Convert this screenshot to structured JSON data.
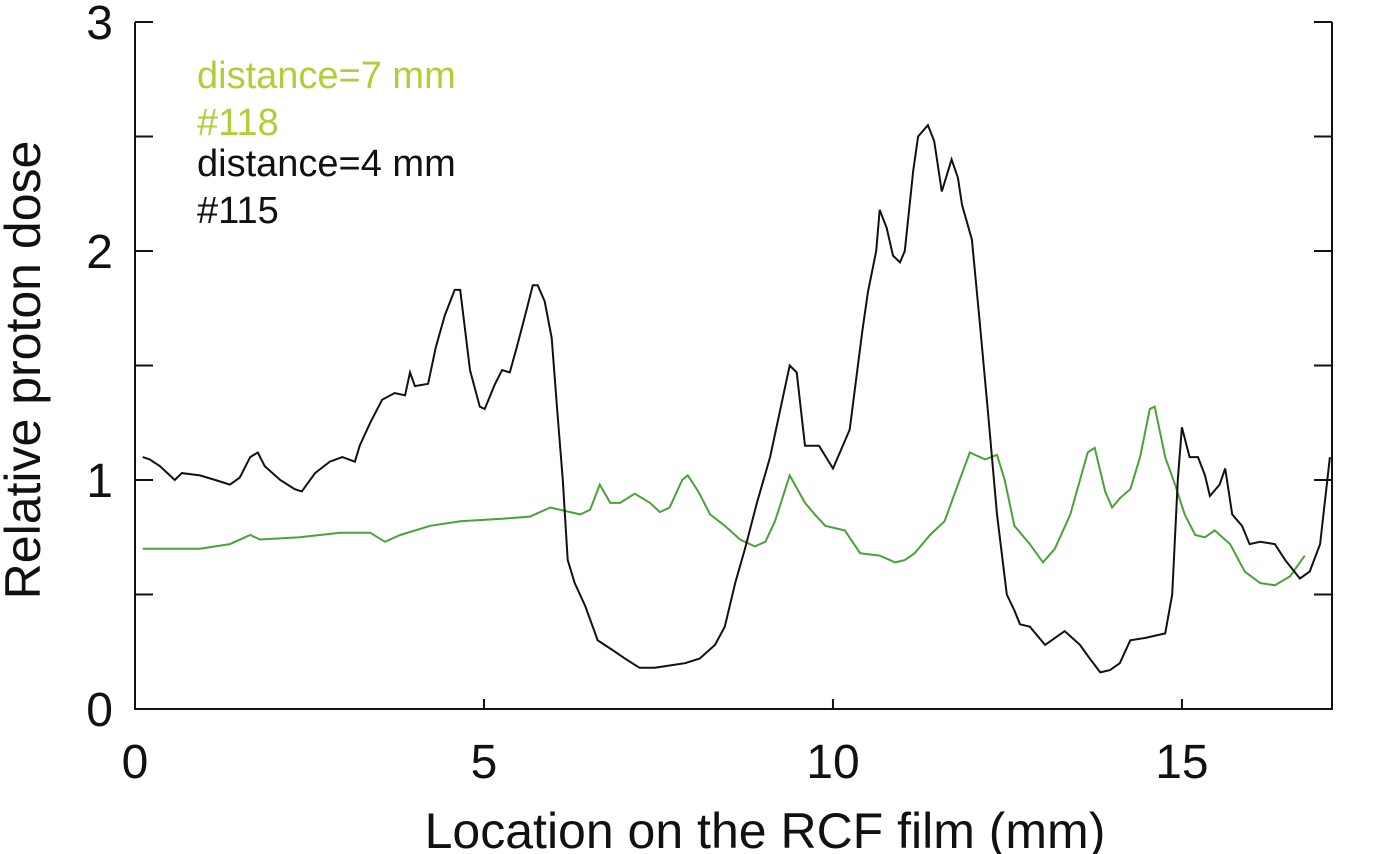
{
  "chart_data": {
    "type": "line",
    "xlabel": "Location on the RCF film (mm)",
    "ylabel": "Relative proton dose",
    "xlim": [
      0,
      17.15
    ],
    "xticks": [
      0,
      5,
      10,
      15
    ],
    "ylim": [
      0,
      3
    ],
    "yticks": [
      0,
      1,
      2,
      3
    ],
    "yminor_ticks": [
      0.5,
      1.5,
      2.5
    ],
    "grid": false,
    "series": [
      {
        "name": "distance=7 mm",
        "sample": "#118",
        "color": "#4ea03a",
        "legend_color": "#b5cc3a",
        "x": [
          0.11,
          0.36,
          0.93,
          1.36,
          1.65,
          1.79,
          2.36,
          2.94,
          3.37,
          3.58,
          3.8,
          4.23,
          4.66,
          5.23,
          5.66,
          5.95,
          6.38,
          6.52,
          6.66,
          6.81,
          6.95,
          7.16,
          7.38,
          7.52,
          7.66,
          7.84,
          7.92,
          8.07,
          8.24,
          8.45,
          8.67,
          8.88,
          9.03,
          9.17,
          9.38,
          9.6,
          9.74,
          9.89,
          10.17,
          10.39,
          10.67,
          10.89,
          11.03,
          11.17,
          11.39,
          11.6,
          11.79,
          11.96,
          12.18,
          12.35,
          12.46,
          12.6,
          12.82,
          13.01,
          13.18,
          13.4,
          13.54,
          13.65,
          13.75,
          13.9,
          14.0,
          14.11,
          14.26,
          14.4,
          14.54,
          14.61,
          14.76,
          14.9,
          15.04,
          15.19,
          15.33,
          15.47,
          15.69,
          15.9,
          16.12,
          16.33,
          16.55,
          16.76
        ],
        "values": [
          0.7,
          0.7,
          0.7,
          0.72,
          0.76,
          0.74,
          0.75,
          0.77,
          0.77,
          0.73,
          0.76,
          0.8,
          0.82,
          0.83,
          0.84,
          0.88,
          0.85,
          0.87,
          0.98,
          0.9,
          0.9,
          0.94,
          0.9,
          0.86,
          0.88,
          1.0,
          1.02,
          0.95,
          0.85,
          0.8,
          0.74,
          0.71,
          0.73,
          0.82,
          1.02,
          0.9,
          0.85,
          0.8,
          0.78,
          0.68,
          0.67,
          0.64,
          0.65,
          0.68,
          0.76,
          0.82,
          0.98,
          1.12,
          1.09,
          1.11,
          1.0,
          0.8,
          0.72,
          0.64,
          0.7,
          0.85,
          1.0,
          1.12,
          1.14,
          0.95,
          0.88,
          0.92,
          0.96,
          1.1,
          1.31,
          1.32,
          1.1,
          0.98,
          0.85,
          0.76,
          0.75,
          0.78,
          0.72,
          0.6,
          0.55,
          0.54,
          0.58,
          0.67
        ]
      },
      {
        "name": "distance=4 mm",
        "sample": "#115",
        "color": "#111111",
        "legend_color": "#111111",
        "x": [
          0.11,
          0.21,
          0.36,
          0.57,
          0.67,
          0.93,
          1.15,
          1.36,
          1.5,
          1.65,
          1.76,
          1.86,
          2.08,
          2.29,
          2.39,
          2.58,
          2.79,
          2.97,
          3.15,
          3.22,
          3.37,
          3.54,
          3.72,
          3.87,
          3.94,
          4.01,
          4.2,
          4.31,
          4.44,
          4.58,
          4.66,
          4.8,
          4.94,
          5.01,
          5.16,
          5.26,
          5.37,
          5.47,
          5.59,
          5.7,
          5.77,
          5.87,
          5.97,
          6.05,
          6.13,
          6.2,
          6.3,
          6.45,
          6.63,
          6.83,
          7.02,
          7.23,
          7.45,
          7.66,
          7.88,
          8.09,
          8.31,
          8.45,
          8.6,
          8.74,
          8.91,
          9.1,
          9.24,
          9.38,
          9.48,
          9.6,
          9.8,
          10.0,
          10.24,
          10.42,
          10.5,
          10.62,
          10.67,
          10.77,
          10.86,
          10.96,
          11.03,
          11.15,
          11.22,
          11.36,
          11.45,
          11.56,
          11.7,
          11.79,
          11.85,
          11.99,
          12.1,
          12.22,
          12.35,
          12.49,
          12.6,
          12.68,
          12.82,
          13.04,
          13.32,
          13.54,
          13.68,
          13.83,
          13.97,
          14.11,
          14.26,
          14.47,
          14.76,
          14.86,
          14.94,
          15.0,
          15.11,
          15.23,
          15.33,
          15.4,
          15.54,
          15.62,
          15.72,
          15.86,
          15.97,
          16.12,
          16.33,
          16.48,
          16.69,
          16.83,
          16.98,
          17.12
        ],
        "values": [
          1.1,
          1.09,
          1.06,
          1.0,
          1.03,
          1.02,
          1.0,
          0.98,
          1.01,
          1.1,
          1.12,
          1.06,
          1.0,
          0.96,
          0.95,
          1.03,
          1.08,
          1.1,
          1.08,
          1.15,
          1.25,
          1.35,
          1.38,
          1.37,
          1.47,
          1.41,
          1.42,
          1.58,
          1.72,
          1.83,
          1.83,
          1.48,
          1.32,
          1.31,
          1.42,
          1.48,
          1.47,
          1.58,
          1.72,
          1.85,
          1.85,
          1.78,
          1.62,
          1.3,
          1.0,
          0.65,
          0.55,
          0.45,
          0.3,
          0.26,
          0.22,
          0.18,
          0.18,
          0.19,
          0.2,
          0.22,
          0.28,
          0.36,
          0.55,
          0.7,
          0.9,
          1.1,
          1.3,
          1.5,
          1.47,
          1.15,
          1.15,
          1.05,
          1.22,
          1.65,
          1.82,
          2.0,
          2.18,
          2.1,
          1.98,
          1.95,
          2.0,
          2.35,
          2.5,
          2.55,
          2.48,
          2.26,
          2.4,
          2.32,
          2.2,
          2.05,
          1.7,
          1.3,
          0.85,
          0.5,
          0.43,
          0.37,
          0.36,
          0.28,
          0.34,
          0.28,
          0.22,
          0.16,
          0.17,
          0.2,
          0.3,
          0.31,
          0.33,
          0.5,
          1.0,
          1.23,
          1.1,
          1.1,
          1.02,
          0.93,
          0.98,
          1.05,
          0.85,
          0.8,
          0.72,
          0.73,
          0.72,
          0.65,
          0.57,
          0.6,
          0.72,
          1.1
        ]
      }
    ]
  }
}
